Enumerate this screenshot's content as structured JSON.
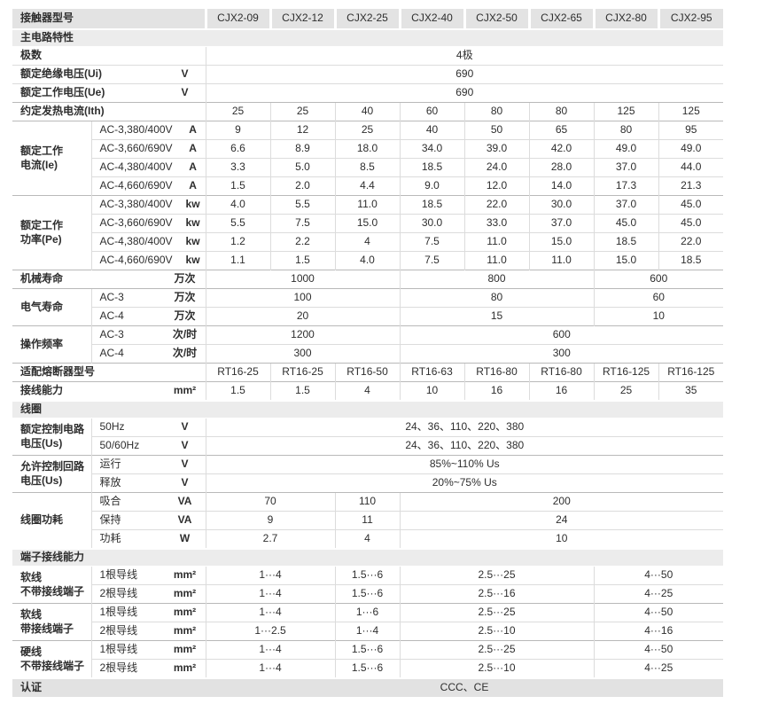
{
  "colors": {
    "header": "#e3e3e3",
    "section": "#ececec",
    "cert": "#e2e2e2",
    "border": "#dcdcdc",
    "border_strong": "#b9b9b9",
    "text": "#2e2e2e"
  },
  "header": {
    "label": "接触器型号",
    "models": [
      "CJX2-09",
      "CJX2-12",
      "CJX2-25",
      "CJX2-40",
      "CJX2-50",
      "CJX2-65",
      "CJX2-80",
      "CJX2-95"
    ]
  },
  "rows": [
    {
      "kind": "section",
      "label": "主电路特性"
    },
    {
      "kind": "simple",
      "label": "极数",
      "unit": "",
      "first": true,
      "cells": [
        {
          "t": "4极",
          "s": 8
        }
      ]
    },
    {
      "kind": "simple",
      "label": "额定绝缘电压(Ui)",
      "unit": "V",
      "cells": [
        {
          "t": "690",
          "s": 8
        }
      ]
    },
    {
      "kind": "simple",
      "label": "额定工作电压(Ue)",
      "unit": "V",
      "cells": [
        {
          "t": "690",
          "s": 8
        }
      ]
    },
    {
      "kind": "simple",
      "label": "约定发热电流(Ith)",
      "unit": "",
      "grp": true,
      "cells": [
        {
          "t": "25"
        },
        {
          "t": "25"
        },
        {
          "t": "40"
        },
        {
          "t": "60"
        },
        {
          "t": "80"
        },
        {
          "t": "80"
        },
        {
          "t": "125"
        },
        {
          "t": "125"
        }
      ]
    },
    {
      "kind": "group",
      "label": "额定工作\n电流(Ie)",
      "grp": true,
      "rows": [
        {
          "sub": "AC-3,380/400V",
          "unit": "A",
          "cells": [
            {
              "t": "9"
            },
            {
              "t": "12"
            },
            {
              "t": "25"
            },
            {
              "t": "40"
            },
            {
              "t": "50"
            },
            {
              "t": "65"
            },
            {
              "t": "80"
            },
            {
              "t": "95"
            }
          ]
        },
        {
          "sub": "AC-3,660/690V",
          "unit": "A",
          "cells": [
            {
              "t": "6.6"
            },
            {
              "t": "8.9"
            },
            {
              "t": "18.0"
            },
            {
              "t": "34.0"
            },
            {
              "t": "39.0"
            },
            {
              "t": "42.0"
            },
            {
              "t": "49.0"
            },
            {
              "t": "49.0"
            }
          ]
        },
        {
          "sub": "AC-4,380/400V",
          "unit": "A",
          "cells": [
            {
              "t": "3.3"
            },
            {
              "t": "5.0"
            },
            {
              "t": "8.5"
            },
            {
              "t": "18.5"
            },
            {
              "t": "24.0"
            },
            {
              "t": "28.0"
            },
            {
              "t": "37.0"
            },
            {
              "t": "44.0"
            }
          ]
        },
        {
          "sub": "AC-4,660/690V",
          "unit": "A",
          "cells": [
            {
              "t": "1.5"
            },
            {
              "t": "2.0"
            },
            {
              "t": "4.4"
            },
            {
              "t": "9.0"
            },
            {
              "t": "12.0"
            },
            {
              "t": "14.0"
            },
            {
              "t": "17.3"
            },
            {
              "t": "21.3"
            }
          ]
        }
      ]
    },
    {
      "kind": "group",
      "label": "额定工作\n功率(Pe)",
      "grp": true,
      "rows": [
        {
          "sub": "AC-3,380/400V",
          "unit": "kw",
          "cells": [
            {
              "t": "4.0"
            },
            {
              "t": "5.5"
            },
            {
              "t": "11.0"
            },
            {
              "t": "18.5"
            },
            {
              "t": "22.0"
            },
            {
              "t": "30.0"
            },
            {
              "t": "37.0"
            },
            {
              "t": "45.0"
            }
          ]
        },
        {
          "sub": "AC-3,660/690V",
          "unit": "kw",
          "cells": [
            {
              "t": "5.5"
            },
            {
              "t": "7.5"
            },
            {
              "t": "15.0"
            },
            {
              "t": "30.0"
            },
            {
              "t": "33.0"
            },
            {
              "t": "37.0"
            },
            {
              "t": "45.0"
            },
            {
              "t": "45.0"
            }
          ]
        },
        {
          "sub": "AC-4,380/400V",
          "unit": "kw",
          "cells": [
            {
              "t": "1.2"
            },
            {
              "t": "2.2"
            },
            {
              "t": "4"
            },
            {
              "t": "7.5"
            },
            {
              "t": "11.0"
            },
            {
              "t": "15.0"
            },
            {
              "t": "18.5"
            },
            {
              "t": "22.0"
            }
          ]
        },
        {
          "sub": "AC-4,660/690V",
          "unit": "kw",
          "cells": [
            {
              "t": "1.1"
            },
            {
              "t": "1.5"
            },
            {
              "t": "4.0"
            },
            {
              "t": "7.5"
            },
            {
              "t": "11.0"
            },
            {
              "t": "11.0"
            },
            {
              "t": "15.0"
            },
            {
              "t": "18.5"
            }
          ]
        }
      ]
    },
    {
      "kind": "simple",
      "label": "机械寿命",
      "unit": "万次",
      "grp": true,
      "cells": [
        {
          "t": "1000",
          "s": 3
        },
        {
          "t": "800",
          "s": 3
        },
        {
          "t": "600",
          "s": 2
        }
      ]
    },
    {
      "kind": "group",
      "label": "电气寿命",
      "grp": true,
      "rows": [
        {
          "sub": "AC-3",
          "unit": "万次",
          "cells": [
            {
              "t": "100",
              "s": 3
            },
            {
              "t": "80",
              "s": 3
            },
            {
              "t": "60",
              "s": 2
            }
          ]
        },
        {
          "sub": "AC-4",
          "unit": "万次",
          "cells": [
            {
              "t": "20",
              "s": 3
            },
            {
              "t": "15",
              "s": 3
            },
            {
              "t": "10",
              "s": 2
            }
          ]
        }
      ]
    },
    {
      "kind": "group",
      "label": "操作频率",
      "grp": true,
      "rows": [
        {
          "sub": "AC-3",
          "unit": "次/时",
          "cells": [
            {
              "t": "1200",
              "s": 3
            },
            {
              "t": "600",
              "s": 5
            }
          ]
        },
        {
          "sub": "AC-4",
          "unit": "次/时",
          "cells": [
            {
              "t": "300",
              "s": 3
            },
            {
              "t": "300",
              "s": 5
            }
          ]
        }
      ]
    },
    {
      "kind": "simple",
      "label": "适配熔断器型号",
      "unit": "",
      "grp": true,
      "cells": [
        {
          "t": "RT16-25"
        },
        {
          "t": "RT16-25"
        },
        {
          "t": "RT16-50"
        },
        {
          "t": "RT16-63"
        },
        {
          "t": "RT16-80"
        },
        {
          "t": "RT16-80"
        },
        {
          "t": "RT16-125"
        },
        {
          "t": "RT16-125"
        }
      ]
    },
    {
      "kind": "simple",
      "label": "接线能力",
      "unit": "mm²",
      "grp": true,
      "cells": [
        {
          "t": "1.5"
        },
        {
          "t": "1.5"
        },
        {
          "t": "4"
        },
        {
          "t": "10"
        },
        {
          "t": "16"
        },
        {
          "t": "16"
        },
        {
          "t": "25"
        },
        {
          "t": "35"
        }
      ]
    },
    {
      "kind": "section",
      "label": "线圈"
    },
    {
      "kind": "group",
      "label": "额定控制电路\n电压(Us)",
      "first": true,
      "rows": [
        {
          "sub": "50Hz",
          "unit": "V",
          "cells": [
            {
              "t": "24、36、110、220、380",
              "s": 8
            }
          ]
        },
        {
          "sub": "50/60Hz",
          "unit": "V",
          "cells": [
            {
              "t": "24、36、110、220、380",
              "s": 8
            }
          ]
        }
      ]
    },
    {
      "kind": "group",
      "label": "允许控制回路\n电压(Us)",
      "grp": true,
      "rows": [
        {
          "sub": "运行",
          "unit": "V",
          "cells": [
            {
              "t": "85%~110% Us",
              "s": 8
            }
          ]
        },
        {
          "sub": "释放",
          "unit": "V",
          "cells": [
            {
              "t": "20%~75% Us",
              "s": 8
            }
          ]
        }
      ]
    },
    {
      "kind": "group",
      "label": "线圈功耗",
      "grp": true,
      "rows": [
        {
          "sub": "吸合",
          "unit": "VA",
          "cells": [
            {
              "t": "70",
              "s": 2
            },
            {
              "t": "110",
              "s": 1
            },
            {
              "t": "200",
              "s": 5
            }
          ]
        },
        {
          "sub": "保持",
          "unit": "VA",
          "cells": [
            {
              "t": "9",
              "s": 2
            },
            {
              "t": "11",
              "s": 1
            },
            {
              "t": "24",
              "s": 5
            }
          ]
        },
        {
          "sub": "功耗",
          "unit": "W",
          "cells": [
            {
              "t": "2.7",
              "s": 2
            },
            {
              "t": "4",
              "s": 1
            },
            {
              "t": "10",
              "s": 5
            }
          ]
        }
      ]
    },
    {
      "kind": "section",
      "label": "端子接线能力"
    },
    {
      "kind": "group",
      "label": "软线\n不带接线端子",
      "first": true,
      "rows": [
        {
          "sub": "1根导线",
          "unit": "mm²",
          "cells": [
            {
              "t": "1···4",
              "s": 2
            },
            {
              "t": "1.5···6",
              "s": 1
            },
            {
              "t": "2.5···25",
              "s": 3
            },
            {
              "t": "4···50",
              "s": 2
            }
          ]
        },
        {
          "sub": "2根导线",
          "unit": "mm²",
          "cells": [
            {
              "t": "1···4",
              "s": 2
            },
            {
              "t": "1.5···6",
              "s": 1
            },
            {
              "t": "2.5···16",
              "s": 3
            },
            {
              "t": "4···25",
              "s": 2
            }
          ]
        }
      ]
    },
    {
      "kind": "group",
      "label": "软线\n带接线端子",
      "grp": true,
      "rows": [
        {
          "sub": "1根导线",
          "unit": "mm²",
          "cells": [
            {
              "t": "1···4",
              "s": 2
            },
            {
              "t": "1···6",
              "s": 1
            },
            {
              "t": "2.5···25",
              "s": 3
            },
            {
              "t": "4···50",
              "s": 2
            }
          ]
        },
        {
          "sub": "2根导线",
          "unit": "mm²",
          "cells": [
            {
              "t": "1···2.5",
              "s": 2
            },
            {
              "t": "1···4",
              "s": 1
            },
            {
              "t": "2.5···10",
              "s": 3
            },
            {
              "t": "4···16",
              "s": 2
            }
          ]
        }
      ]
    },
    {
      "kind": "group",
      "label": "硬线\n不带接线端子",
      "grp": true,
      "rows": [
        {
          "sub": "1根导线",
          "unit": "mm²",
          "cells": [
            {
              "t": "1···4",
              "s": 2
            },
            {
              "t": "1.5···6",
              "s": 1
            },
            {
              "t": "2.5···25",
              "s": 3
            },
            {
              "t": "4···50",
              "s": 2
            }
          ]
        },
        {
          "sub": "2根导线",
          "unit": "mm²",
          "cells": [
            {
              "t": "1···4",
              "s": 2
            },
            {
              "t": "1.5···6",
              "s": 1
            },
            {
              "t": "2.5···10",
              "s": 3
            },
            {
              "t": "4···25",
              "s": 2
            }
          ]
        }
      ]
    },
    {
      "kind": "cert",
      "label": "认证",
      "value": "CCC、CE"
    }
  ]
}
